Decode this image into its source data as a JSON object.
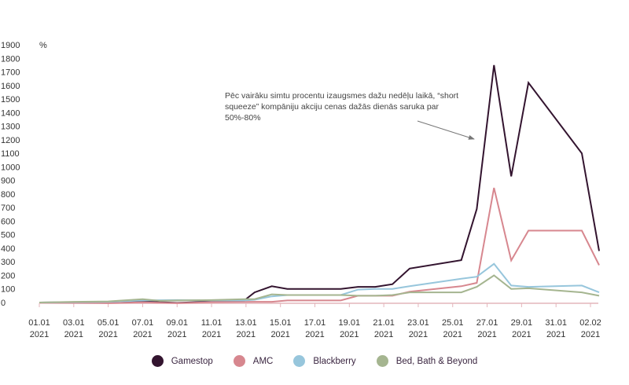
{
  "chart_data": {
    "type": "line",
    "ylabel": "%",
    "ylim": [
      0,
      1900
    ],
    "yticks": [
      "0",
      "100",
      "200",
      "300",
      "400",
      "500",
      "600",
      "700",
      "800",
      "900",
      "1000",
      "1100",
      "1200",
      "1300",
      "1400",
      "1500",
      "1600",
      "1700",
      "1800",
      "1900"
    ],
    "xlim_days": [
      1,
      33
    ],
    "xticks": [
      {
        "day": 1,
        "l1": "01.01",
        "l2": "2021"
      },
      {
        "day": 3,
        "l1": "03.01",
        "l2": "2021"
      },
      {
        "day": 5,
        "l1": "05.01",
        "l2": "2021"
      },
      {
        "day": 7,
        "l1": "07.01",
        "l2": "2021"
      },
      {
        "day": 9,
        "l1": "09.01",
        "l2": "2021"
      },
      {
        "day": 11,
        "l1": "11.01",
        "l2": "2021"
      },
      {
        "day": 13,
        "l1": "13.01",
        "l2": "2021"
      },
      {
        "day": 15,
        "l1": "15.01",
        "l2": "2021"
      },
      {
        "day": 17,
        "l1": "17.01",
        "l2": "2021"
      },
      {
        "day": 19,
        "l1": "19.01",
        "l2": "2021"
      },
      {
        "day": 21,
        "l1": "21.01",
        "l2": "2021"
      },
      {
        "day": 23,
        "l1": "23.01",
        "l2": "2021"
      },
      {
        "day": 25,
        "l1": "25.01",
        "l2": "2021"
      },
      {
        "day": 27,
        "l1": "27.01",
        "l2": "2021"
      },
      {
        "day": 29,
        "l1": "29.01",
        "l2": "2021"
      },
      {
        "day": 31,
        "l1": "31.01",
        "l2": "2021"
      },
      {
        "day": 33,
        "l1": "02.02",
        "l2": "2021"
      }
    ],
    "annotation": "Pēc vairāku simtu procentu izaugsmes dažu nedēļu laikā, “short squeeze” kompāniju akciju cenas dažās dienās saruka par 50%-80%",
    "series": [
      {
        "name": "Gamestop",
        "color": "#33142f",
        "points": [
          [
            1,
            0
          ],
          [
            3,
            2
          ],
          [
            5,
            -3
          ],
          [
            7,
            8
          ],
          [
            9,
            -3
          ],
          [
            11,
            8
          ],
          [
            12.9,
            15
          ],
          [
            13.5,
            75
          ],
          [
            14.5,
            120
          ],
          [
            15.4,
            100
          ],
          [
            18.5,
            100
          ],
          [
            19.5,
            115
          ],
          [
            20.5,
            115
          ],
          [
            21.5,
            135
          ],
          [
            22.5,
            250
          ],
          [
            25.5,
            312
          ],
          [
            26.4,
            690
          ],
          [
            27.4,
            1750
          ],
          [
            28.4,
            930
          ],
          [
            29.4,
            1620
          ],
          [
            32.5,
            1100
          ],
          [
            33.5,
            380
          ]
        ]
      },
      {
        "name": "AMC",
        "color": "#d7878f",
        "points": [
          [
            1,
            0
          ],
          [
            3,
            -3
          ],
          [
            5,
            -5
          ],
          [
            7,
            2
          ],
          [
            9,
            -5
          ],
          [
            11,
            3
          ],
          [
            13.5,
            5
          ],
          [
            14.5,
            5
          ],
          [
            15.4,
            15
          ],
          [
            18.5,
            15
          ],
          [
            19.5,
            50
          ],
          [
            20.5,
            50
          ],
          [
            21.5,
            50
          ],
          [
            22.5,
            80
          ],
          [
            25.5,
            120
          ],
          [
            26.4,
            145
          ],
          [
            27.4,
            845
          ],
          [
            28.4,
            310
          ],
          [
            29.4,
            530
          ],
          [
            32.5,
            530
          ],
          [
            33.5,
            275
          ]
        ]
      },
      {
        "name": "Blackberry",
        "color": "#97c6dc",
        "points": [
          [
            1,
            0
          ],
          [
            3,
            3
          ],
          [
            5,
            5
          ],
          [
            7,
            15
          ],
          [
            9,
            18
          ],
          [
            11,
            15
          ],
          [
            12.9,
            15
          ],
          [
            13.5,
            20
          ],
          [
            14.5,
            45
          ],
          [
            15.4,
            55
          ],
          [
            18.5,
            55
          ],
          [
            19.5,
            95
          ],
          [
            20.5,
            100
          ],
          [
            21.5,
            100
          ],
          [
            22.5,
            120
          ],
          [
            25.5,
            175
          ],
          [
            26.4,
            190
          ],
          [
            27.4,
            285
          ],
          [
            28.4,
            125
          ],
          [
            29.4,
            115
          ],
          [
            32.5,
            125
          ],
          [
            33.5,
            75
          ]
        ]
      },
      {
        "name": "Bed, Bath & Beyond",
        "color": "#a5b590",
        "points": [
          [
            1,
            0
          ],
          [
            3,
            5
          ],
          [
            5,
            8
          ],
          [
            7,
            25
          ],
          [
            8,
            12
          ],
          [
            9,
            15
          ],
          [
            11,
            18
          ],
          [
            12.9,
            25
          ],
          [
            13.5,
            25
          ],
          [
            14.5,
            60
          ],
          [
            15.4,
            55
          ],
          [
            18.5,
            55
          ],
          [
            19.5,
            50
          ],
          [
            20.5,
            50
          ],
          [
            21.5,
            55
          ],
          [
            22.5,
            75
          ],
          [
            25.5,
            75
          ],
          [
            26.4,
            115
          ],
          [
            27.4,
            200
          ],
          [
            28.4,
            100
          ],
          [
            29.4,
            105
          ],
          [
            32.5,
            75
          ],
          [
            33.5,
            50
          ]
        ]
      }
    ]
  }
}
